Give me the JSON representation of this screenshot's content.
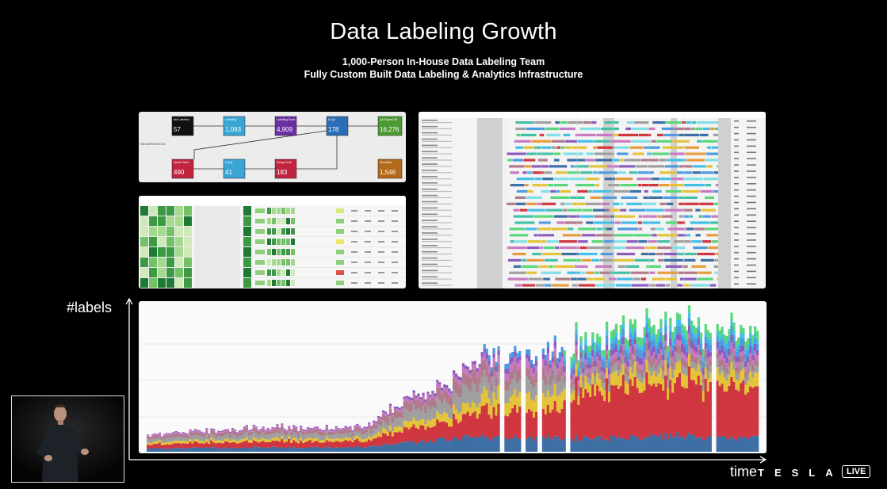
{
  "slide": {
    "title": "Data Labeling Growth",
    "subtitle_1": "1,000-Person In-House Data Labeling Team",
    "subtitle_2": "Fully Custom Built Data Labeling & Analytics Infrastructure"
  },
  "workflow": {
    "row_label": "SEGMENTATION",
    "nodes": [
      {
        "label": "Not Labelled",
        "count": "57",
        "color": "#111111"
      },
      {
        "label": "Labelling",
        "count": "1,093",
        "color": "#39a5d4"
      },
      {
        "label": "Labelling Done",
        "count": "4,909",
        "color": "#6b2fa3"
      },
      {
        "label": "In QA",
        "count": "178",
        "color": "#2a6fb5"
      },
      {
        "label": "QA Signed Off",
        "count": "16,276",
        "color": "#4d9a35"
      },
      {
        "label": "Needs Work",
        "count": "490",
        "color": "#c0243f"
      },
      {
        "label": "Fixing",
        "count": "41",
        "color": "#39a5d4"
      },
      {
        "label": "Fixing Done",
        "count": "183",
        "color": "#c0243f"
      },
      {
        "label": "Escalated",
        "count": "1,546",
        "color": "#b46a1c"
      }
    ]
  },
  "growth_chart": {
    "y_axis_label": "#labels",
    "x_axis_label": "time"
  },
  "branding": {
    "logo_text": "TESLA",
    "live_badge": "LIVE"
  },
  "colors": {
    "bg": "#000000",
    "series": [
      "#3d6fa5",
      "#cf3640",
      "#e5c338",
      "#9f9f9f",
      "#b07a8a",
      "#c879c1",
      "#8a5cbf",
      "#4d9be0",
      "#42c0e8",
      "#59d77a",
      "#e89b3b",
      "#44c0a8",
      "#7fe0e6"
    ]
  }
}
